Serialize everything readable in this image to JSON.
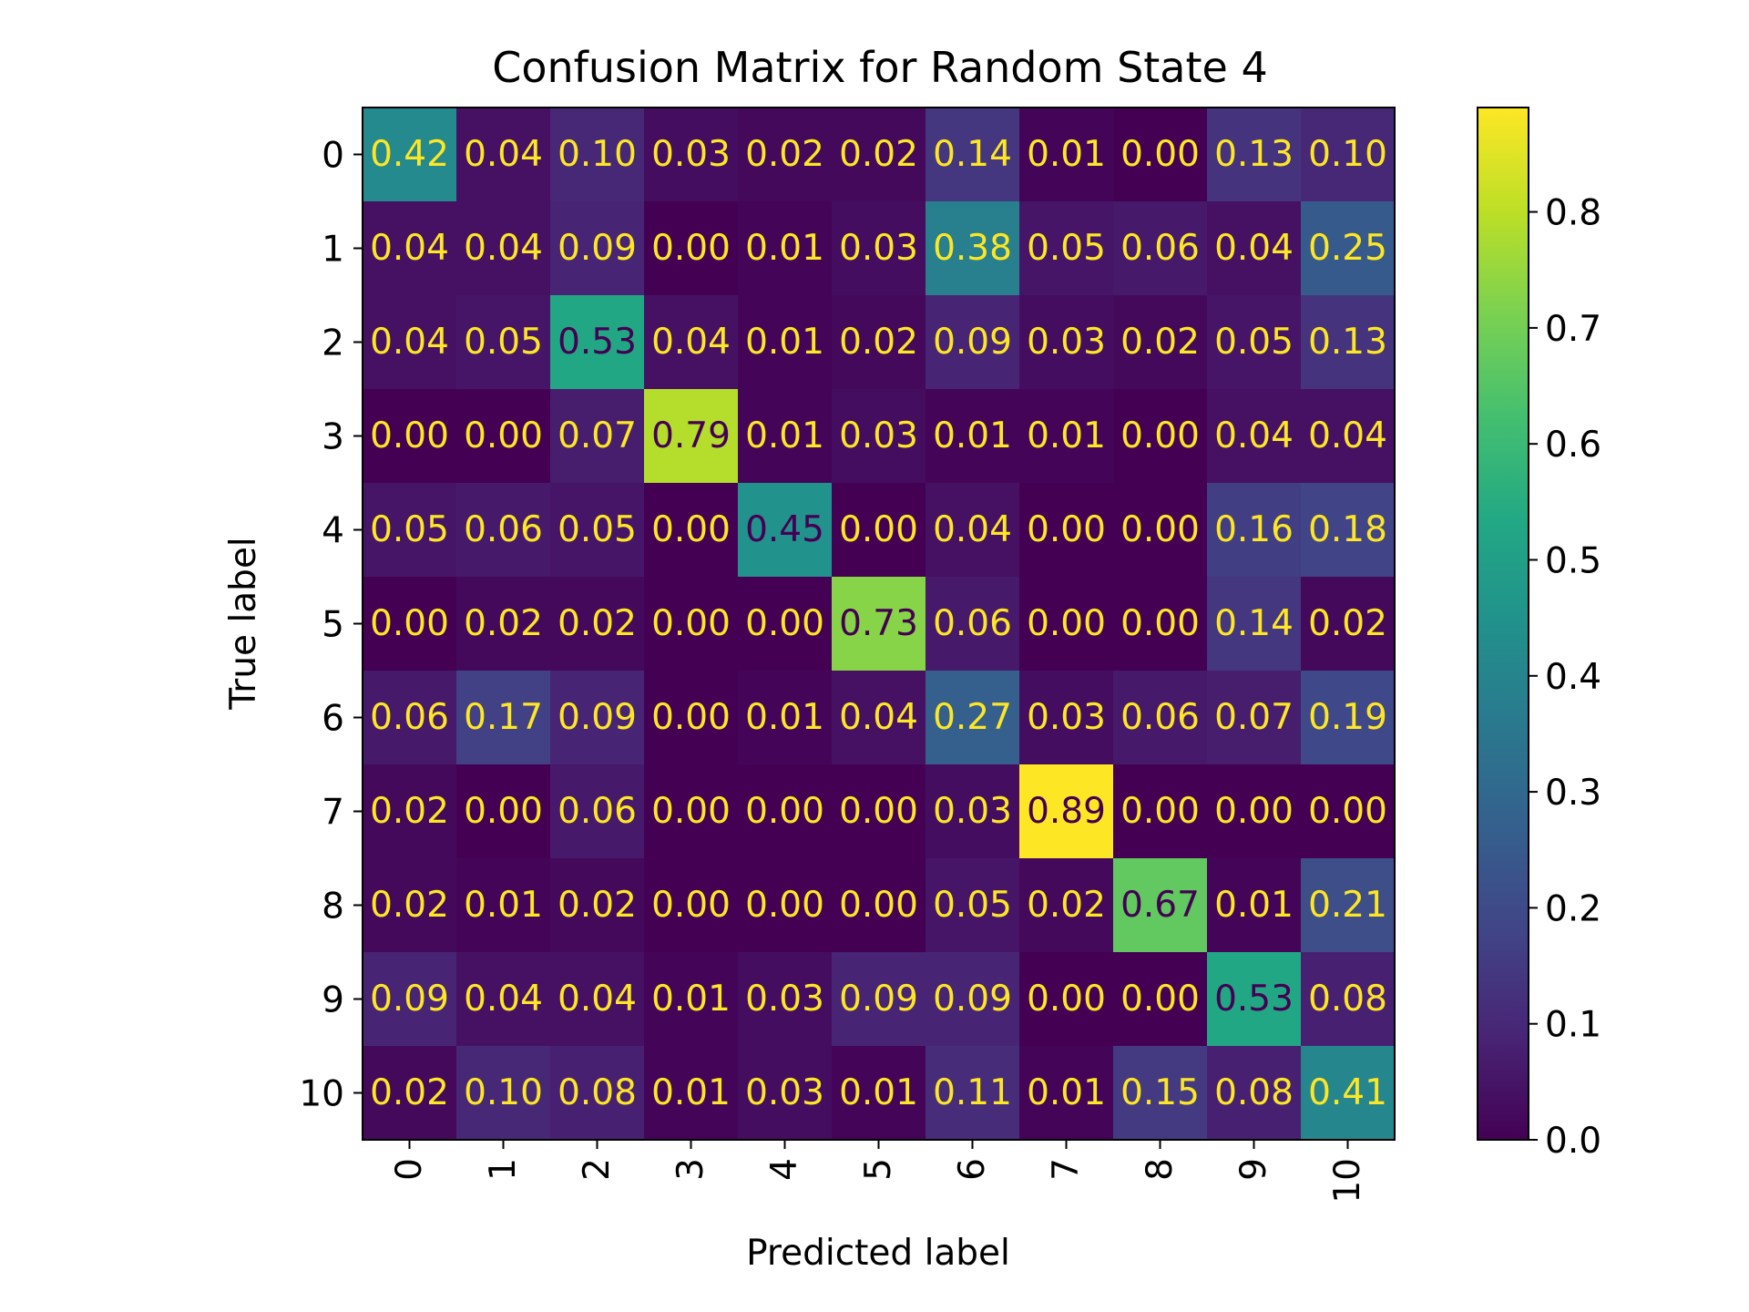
{
  "chart_data": {
    "type": "heatmap",
    "title": "Confusion Matrix for Random State 4",
    "xlabel": "Predicted label",
    "ylabel": "True label",
    "x_categories": [
      "0",
      "1",
      "2",
      "3",
      "4",
      "5",
      "6",
      "7",
      "8",
      "9",
      "10"
    ],
    "y_categories": [
      "0",
      "1",
      "2",
      "3",
      "4",
      "5",
      "6",
      "7",
      "8",
      "9",
      "10"
    ],
    "value_labels": [
      [
        "0.42",
        "0.04",
        "0.10",
        "0.03",
        "0.02",
        "0.02",
        "0.14",
        "0.01",
        "0.00",
        "0.13",
        "0.10"
      ],
      [
        "0.04",
        "0.04",
        "0.09",
        "0.00",
        "0.01",
        "0.03",
        "0.38",
        "0.05",
        "0.06",
        "0.04",
        "0.25"
      ],
      [
        "0.04",
        "0.05",
        "0.53",
        "0.04",
        "0.01",
        "0.02",
        "0.09",
        "0.03",
        "0.02",
        "0.05",
        "0.13"
      ],
      [
        "0.00",
        "0.00",
        "0.07",
        "0.79",
        "0.01",
        "0.03",
        "0.01",
        "0.01",
        "0.00",
        "0.04",
        "0.04"
      ],
      [
        "0.05",
        "0.06",
        "0.05",
        "0.00",
        "0.45",
        "0.00",
        "0.04",
        "0.00",
        "0.00",
        "0.16",
        "0.18"
      ],
      [
        "0.00",
        "0.02",
        "0.02",
        "0.00",
        "0.00",
        "0.73",
        "0.06",
        "0.00",
        "0.00",
        "0.14",
        "0.02"
      ],
      [
        "0.06",
        "0.17",
        "0.09",
        "0.00",
        "0.01",
        "0.04",
        "0.27",
        "0.03",
        "0.06",
        "0.07",
        "0.19"
      ],
      [
        "0.02",
        "0.00",
        "0.06",
        "0.00",
        "0.00",
        "0.00",
        "0.03",
        "0.89",
        "0.00",
        "0.00",
        "0.00"
      ],
      [
        "0.02",
        "0.01",
        "0.02",
        "0.00",
        "0.00",
        "0.00",
        "0.05",
        "0.02",
        "0.67",
        "0.01",
        "0.21"
      ],
      [
        "0.09",
        "0.04",
        "0.04",
        "0.01",
        "0.03",
        "0.09",
        "0.09",
        "0.00",
        "0.00",
        "0.53",
        "0.08"
      ],
      [
        "0.02",
        "0.10",
        "0.08",
        "0.01",
        "0.03",
        "0.01",
        "0.11",
        "0.01",
        "0.15",
        "0.08",
        "0.41"
      ]
    ],
    "colormap": "viridis",
    "vmin": 0.0,
    "vmax": 0.89,
    "colorbar_ticks": [
      "0.0",
      "0.1",
      "0.2",
      "0.3",
      "0.4",
      "0.5",
      "0.6",
      "0.7",
      "0.8"
    ],
    "text_color_light": "#fde725",
    "text_color_dark": "#440154"
  }
}
